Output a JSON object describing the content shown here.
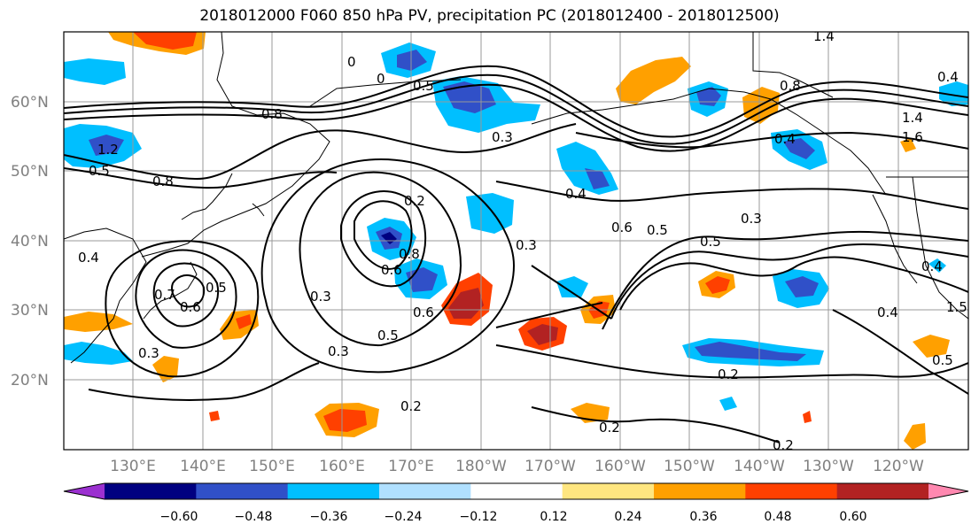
{
  "title": "2018012000 F060 850 hPa PV, precipitation PC (2018012400 - 2018012500)",
  "map": {
    "lat_labels": [
      "60°N",
      "50°N",
      "40°N",
      "30°N",
      "20°N"
    ],
    "lon_labels": [
      "130°E",
      "140°E",
      "150°E",
      "160°E",
      "170°E",
      "180°W",
      "170°W",
      "160°W",
      "150°W",
      "140°W",
      "130°W",
      "120°W"
    ],
    "contour_labels": [
      "0",
      "0",
      "0.5",
      "0.3",
      "0.8",
      "1.4",
      "0.4",
      "1.6",
      "0.8",
      "1.2",
      "0.5",
      "0.8",
      "0.2",
      "0.4",
      "0.6",
      "0.5",
      "0.3",
      "0.5",
      "0.3",
      "0.6",
      "0.8",
      "0.4",
      "0.5",
      "0.6",
      "0.7",
      "0.3",
      "0.3",
      "0.6",
      "0.5",
      "0.3",
      "0.2",
      "0.2",
      "0.2",
      "0.4",
      "0.5",
      "0.4",
      "1.5",
      "1.4",
      "0.4",
      "0.2"
    ]
  },
  "colorbar": {
    "ticks": [
      "−0.60",
      "−0.48",
      "−0.36",
      "−0.24",
      "−0.12",
      "0.12",
      "0.24",
      "0.36",
      "0.48",
      "0.60"
    ],
    "colors": [
      "#9b30d0",
      "#000080",
      "#3050c8",
      "#00bfff",
      "#b0e0ff",
      "#ffffff",
      "#ffe680",
      "#ffa000",
      "#ff4000",
      "#b22222",
      "#ff88b0"
    ]
  }
}
